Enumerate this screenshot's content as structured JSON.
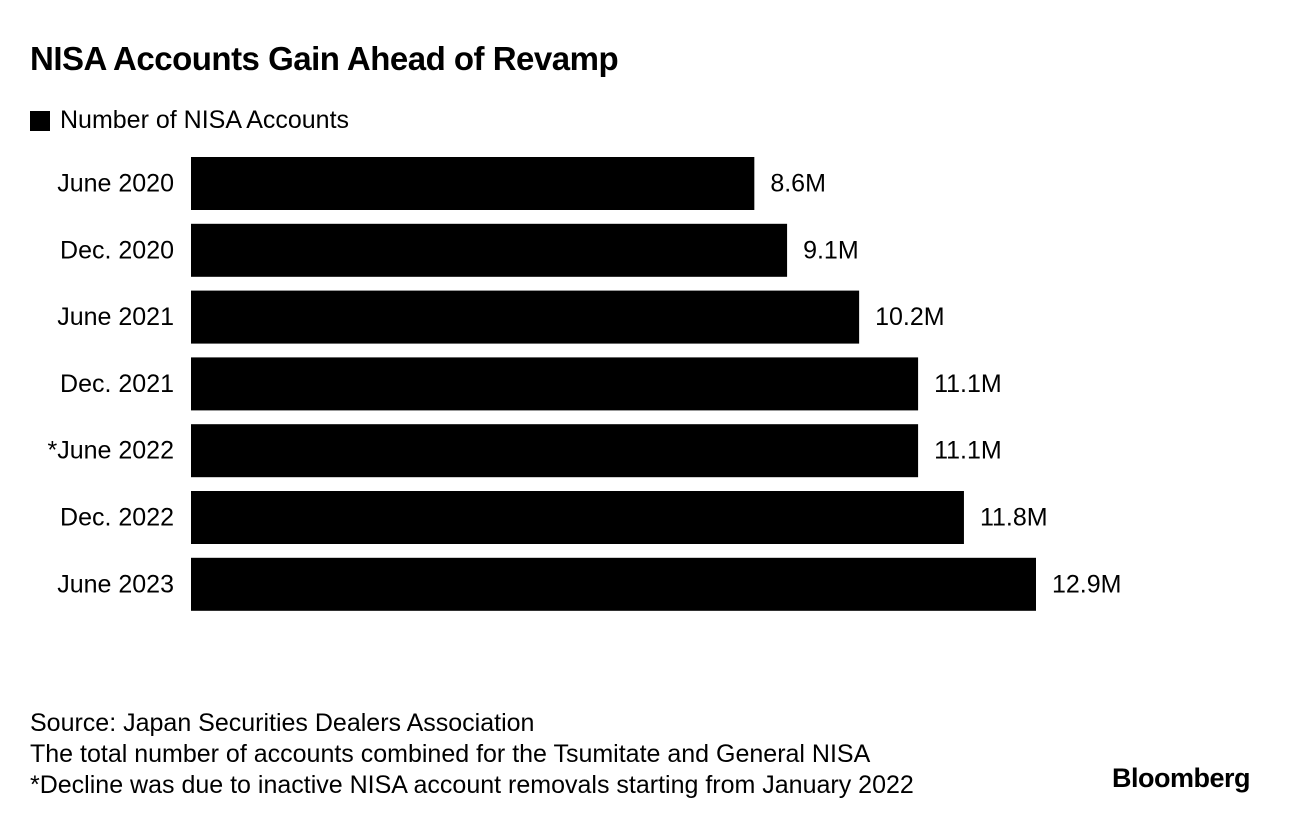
{
  "chart_data": {
    "type": "bar",
    "orientation": "horizontal",
    "title": "NISA Accounts Gain Ahead of Revamp",
    "legend": [
      {
        "label": "Number of NISA Accounts",
        "color": "#000000"
      }
    ],
    "categories": [
      "June 2020",
      "Dec. 2020",
      "June 2021",
      "Dec. 2021",
      "*June 2022",
      "Dec. 2022",
      "June 2023"
    ],
    "values": [
      8.6,
      9.1,
      10.2,
      11.1,
      11.1,
      11.8,
      12.9
    ],
    "value_labels": [
      "8.6M",
      "9.1M",
      "10.2M",
      "11.1M",
      "11.1M",
      "11.8M",
      "12.9M"
    ],
    "unit": "M",
    "xlim": [
      0,
      12.9
    ],
    "grid": false
  },
  "footnotes": {
    "source": "Source: Japan Securities Dealers Association",
    "note1": "The total number of accounts combined for the Tsumitate and General NISA",
    "note2": "*Decline was due to inactive NISA account removals starting from January 2022"
  },
  "brand": "Bloomberg",
  "colors": {
    "bar": "#000000",
    "text": "#000000",
    "background": "#ffffff"
  }
}
